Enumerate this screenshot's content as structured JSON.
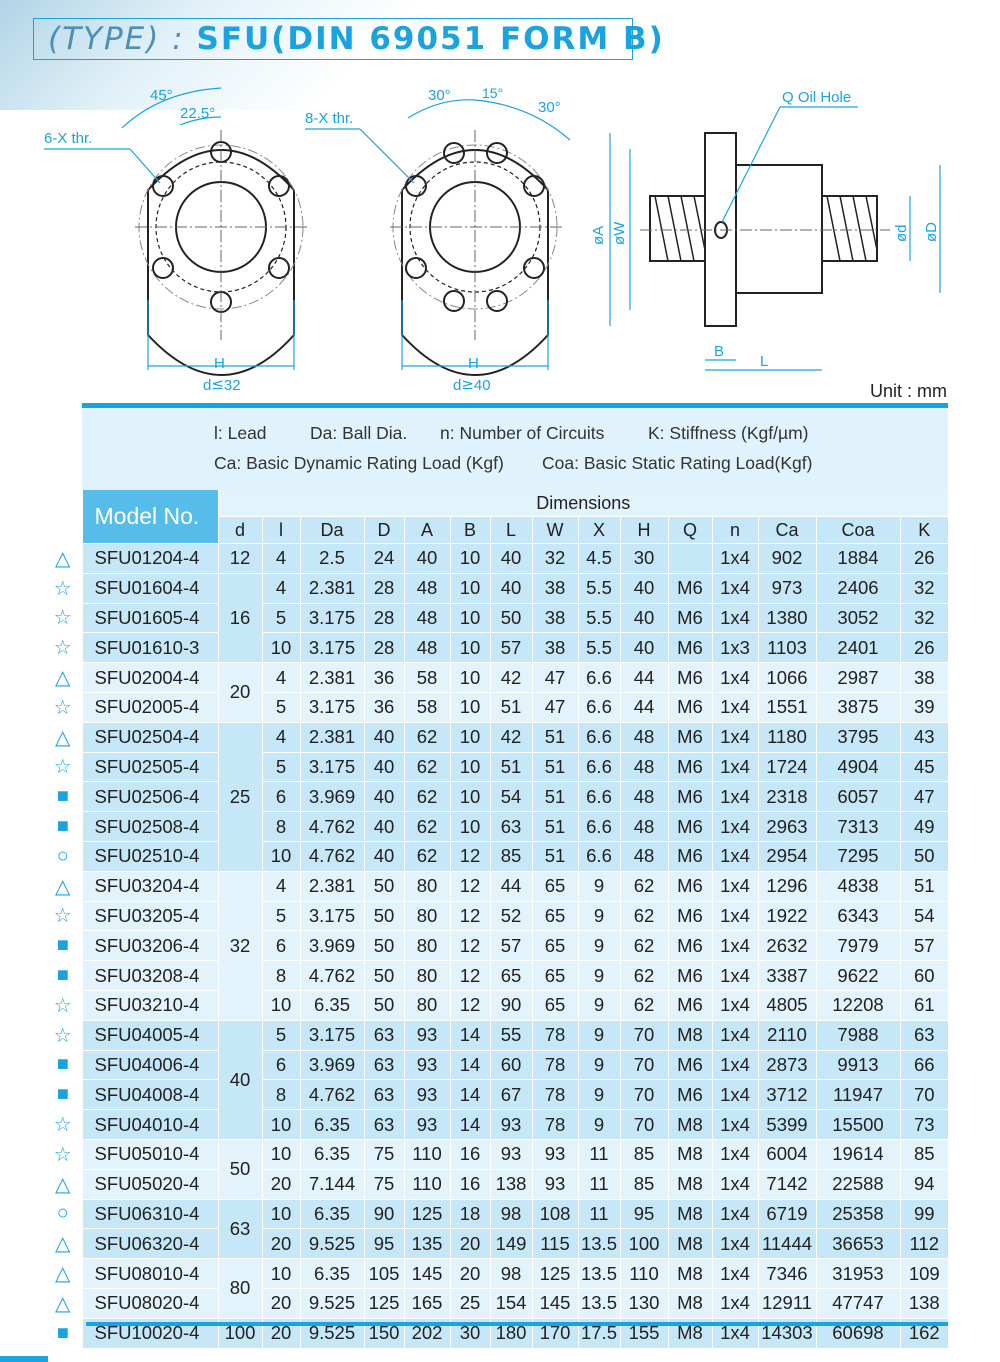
{
  "header": {
    "type_prefix": "(TYPE) : ",
    "title": "SFU(DIN 69051 FORM B)"
  },
  "drawing": {
    "left": {
      "angle1": "45°",
      "angle2": "22.5°",
      "thread": "6-X  thr.",
      "h_label": "H",
      "d_condition": "d≦32"
    },
    "middle": {
      "angle1": "30°",
      "angle2": "15°",
      "angle3": "30°",
      "thread": "8-X  thr.",
      "h_label": "H",
      "d_condition": "d≧40"
    },
    "side": {
      "oil_hole": "Q Oil Hole",
      "dia_A": "øA",
      "dia_W": "øW",
      "dia_d": "ød",
      "dia_D": "øD",
      "b_label": "B",
      "l_label": "L"
    }
  },
  "unit": "Unit : mm",
  "legend": {
    "lead": "l: Lead",
    "ball": "Da: Ball Dia.",
    "circuits": "n: Number of Circuits",
    "stiffness": "K: Stiffness (Kgf/µm)",
    "dynamic": "Ca: Basic Dynamic Rating Load (Kgf)",
    "static": "Coa: Basic Static Rating Load(Kgf)"
  },
  "table": {
    "model_header": "Model No.",
    "dimensions_header": "Dimensions",
    "columns": [
      "d",
      "l",
      "Da",
      "D",
      "A",
      "B",
      "L",
      "W",
      "X",
      "H",
      "Q",
      "n",
      "Ca",
      "Coa",
      "K"
    ],
    "marker_colors": {
      "accent": "#1aa3df"
    },
    "groups": [
      {
        "d": "12",
        "rows": [
          [
            "triangle",
            "SFU01204-4",
            "4",
            "2.5",
            "24",
            "40",
            "10",
            "40",
            "32",
            "4.5",
            "30",
            "",
            "1x4",
            "902",
            "1884",
            "26"
          ]
        ]
      },
      {
        "d": "16",
        "rows": [
          [
            "star",
            "SFU01604-4",
            "4",
            "2.381",
            "28",
            "48",
            "10",
            "40",
            "38",
            "5.5",
            "40",
            "M6",
            "1x4",
            "973",
            "2406",
            "32"
          ],
          [
            "star",
            "SFU01605-4",
            "5",
            "3.175",
            "28",
            "48",
            "10",
            "50",
            "38",
            "5.5",
            "40",
            "M6",
            "1x4",
            "1380",
            "3052",
            "32"
          ],
          [
            "star",
            "SFU01610-3",
            "10",
            "3.175",
            "28",
            "48",
            "10",
            "57",
            "38",
            "5.5",
            "40",
            "M6",
            "1x3",
            "1103",
            "2401",
            "26"
          ]
        ]
      },
      {
        "d": "20",
        "rows": [
          [
            "triangle",
            "SFU02004-4",
            "4",
            "2.381",
            "36",
            "58",
            "10",
            "42",
            "47",
            "6.6",
            "44",
            "M6",
            "1x4",
            "1066",
            "2987",
            "38"
          ],
          [
            "star",
            "SFU02005-4",
            "5",
            "3.175",
            "36",
            "58",
            "10",
            "51",
            "47",
            "6.6",
            "44",
            "M6",
            "1x4",
            "1551",
            "3875",
            "39"
          ]
        ]
      },
      {
        "d": "25",
        "rows": [
          [
            "triangle",
            "SFU02504-4",
            "4",
            "2.381",
            "40",
            "62",
            "10",
            "42",
            "51",
            "6.6",
            "48",
            "M6",
            "1x4",
            "1180",
            "3795",
            "43"
          ],
          [
            "star",
            "SFU02505-4",
            "5",
            "3.175",
            "40",
            "62",
            "10",
            "51",
            "51",
            "6.6",
            "48",
            "M6",
            "1x4",
            "1724",
            "4904",
            "45"
          ],
          [
            "square",
            "SFU02506-4",
            "6",
            "3.969",
            "40",
            "62",
            "10",
            "54",
            "51",
            "6.6",
            "48",
            "M6",
            "1x4",
            "2318",
            "6057",
            "47"
          ],
          [
            "square",
            "SFU02508-4",
            "8",
            "4.762",
            "40",
            "62",
            "10",
            "63",
            "51",
            "6.6",
            "48",
            "M6",
            "1x4",
            "2963",
            "7313",
            "49"
          ],
          [
            "circle",
            "SFU02510-4",
            "10",
            "4.762",
            "40",
            "62",
            "12",
            "85",
            "51",
            "6.6",
            "48",
            "M6",
            "1x4",
            "2954",
            "7295",
            "50"
          ]
        ]
      },
      {
        "d": "32",
        "rows": [
          [
            "triangle",
            "SFU03204-4",
            "4",
            "2.381",
            "50",
            "80",
            "12",
            "44",
            "65",
            "9",
            "62",
            "M6",
            "1x4",
            "1296",
            "4838",
            "51"
          ],
          [
            "star",
            "SFU03205-4",
            "5",
            "3.175",
            "50",
            "80",
            "12",
            "52",
            "65",
            "9",
            "62",
            "M6",
            "1x4",
            "1922",
            "6343",
            "54"
          ],
          [
            "square",
            "SFU03206-4",
            "6",
            "3.969",
            "50",
            "80",
            "12",
            "57",
            "65",
            "9",
            "62",
            "M6",
            "1x4",
            "2632",
            "7979",
            "57"
          ],
          [
            "square",
            "SFU03208-4",
            "8",
            "4.762",
            "50",
            "80",
            "12",
            "65",
            "65",
            "9",
            "62",
            "M6",
            "1x4",
            "3387",
            "9622",
            "60"
          ],
          [
            "star",
            "SFU03210-4",
            "10",
            "6.35",
            "50",
            "80",
            "12",
            "90",
            "65",
            "9",
            "62",
            "M6",
            "1x4",
            "4805",
            "12208",
            "61"
          ]
        ]
      },
      {
        "d": "40",
        "rows": [
          [
            "star",
            "SFU04005-4",
            "5",
            "3.175",
            "63",
            "93",
            "14",
            "55",
            "78",
            "9",
            "70",
            "M8",
            "1x4",
            "2110",
            "7988",
            "63"
          ],
          [
            "square",
            "SFU04006-4",
            "6",
            "3.969",
            "63",
            "93",
            "14",
            "60",
            "78",
            "9",
            "70",
            "M6",
            "1x4",
            "2873",
            "9913",
            "66"
          ],
          [
            "square",
            "SFU04008-4",
            "8",
            "4.762",
            "63",
            "93",
            "14",
            "67",
            "78",
            "9",
            "70",
            "M6",
            "1x4",
            "3712",
            "11947",
            "70"
          ],
          [
            "star",
            "SFU04010-4",
            "10",
            "6.35",
            "63",
            "93",
            "14",
            "93",
            "78",
            "9",
            "70",
            "M8",
            "1x4",
            "5399",
            "15500",
            "73"
          ]
        ]
      },
      {
        "d": "50",
        "rows": [
          [
            "star",
            "SFU05010-4",
            "10",
            "6.35",
            "75",
            "110",
            "16",
            "93",
            "93",
            "11",
            "85",
            "M8",
            "1x4",
            "6004",
            "19614",
            "85"
          ],
          [
            "triangle",
            "SFU05020-4",
            "20",
            "7.144",
            "75",
            "110",
            "16",
            "138",
            "93",
            "11",
            "85",
            "M8",
            "1x4",
            "7142",
            "22588",
            "94"
          ]
        ]
      },
      {
        "d": "63",
        "rows": [
          [
            "circle",
            "SFU06310-4",
            "10",
            "6.35",
            "90",
            "125",
            "18",
            "98",
            "108",
            "11",
            "95",
            "M8",
            "1x4",
            "6719",
            "25358",
            "99"
          ],
          [
            "triangle",
            "SFU06320-4",
            "20",
            "9.525",
            "95",
            "135",
            "20",
            "149",
            "115",
            "13.5",
            "100",
            "M8",
            "1x4",
            "11444",
            "36653",
            "112"
          ]
        ]
      },
      {
        "d": "80",
        "rows": [
          [
            "triangle",
            "SFU08010-4",
            "10",
            "6.35",
            "105",
            "145",
            "20",
            "98",
            "125",
            "13.5",
            "110",
            "M8",
            "1x4",
            "7346",
            "31953",
            "109"
          ],
          [
            "triangle",
            "SFU08020-4",
            "20",
            "9.525",
            "125",
            "165",
            "25",
            "154",
            "145",
            "13.5",
            "130",
            "M8",
            "1x4",
            "12911",
            "47747",
            "138"
          ]
        ]
      },
      {
        "d": "100",
        "rows": [
          [
            "square",
            "SFU10020-4",
            "20",
            "9.525",
            "150",
            "202",
            "30",
            "180",
            "170",
            "17.5",
            "155",
            "M8",
            "1x4",
            "14303",
            "60698",
            "162"
          ]
        ]
      }
    ]
  }
}
